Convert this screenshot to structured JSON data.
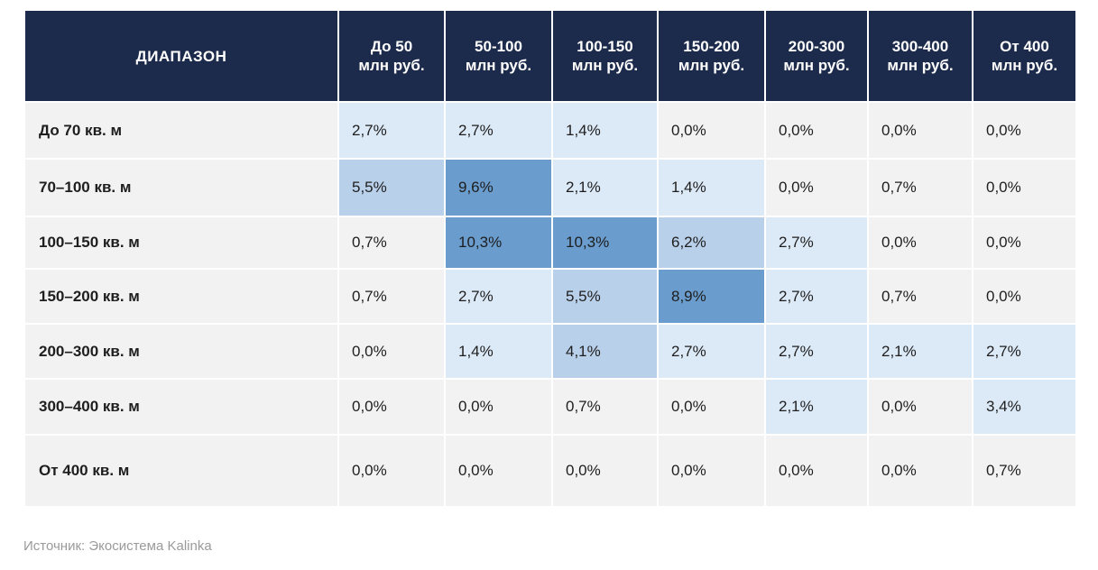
{
  "chart_data": {
    "type": "heatmap",
    "corner_label": "ДИАПАЗОН",
    "columns": [
      [
        "До 50",
        "млн руб."
      ],
      [
        "50-100",
        "млн руб."
      ],
      [
        "100-150",
        "млн руб."
      ],
      [
        "150-200",
        "млн руб."
      ],
      [
        "200-300",
        "млн руб."
      ],
      [
        "300-400",
        "млн руб."
      ],
      [
        "От 400",
        "млн руб."
      ]
    ],
    "rows": [
      "До 70 кв. м",
      "70–100 кв. м",
      "100–150 кв. м",
      "150–200 кв. м",
      "200–300 кв. м",
      "300–400 кв. м",
      "От 400 кв. м"
    ],
    "values": [
      [
        2.7,
        2.7,
        1.4,
        0.0,
        0.0,
        0.0,
        0.0
      ],
      [
        5.5,
        9.6,
        2.1,
        1.4,
        0.0,
        0.7,
        0.0
      ],
      [
        0.7,
        10.3,
        10.3,
        6.2,
        2.7,
        0.0,
        0.0
      ],
      [
        0.7,
        2.7,
        5.5,
        8.9,
        2.7,
        0.7,
        0.0
      ],
      [
        0.0,
        1.4,
        4.1,
        2.7,
        2.7,
        2.1,
        2.7
      ],
      [
        0.0,
        0.0,
        0.7,
        0.0,
        2.1,
        0.0,
        3.4
      ],
      [
        0.0,
        0.0,
        0.0,
        0.0,
        0.0,
        0.0,
        0.7
      ]
    ],
    "cell_labels": [
      [
        "2,7%",
        "2,7%",
        "1,4%",
        "0,0%",
        "0,0%",
        "0,0%",
        "0,0%"
      ],
      [
        "5,5%",
        "9,6%",
        "2,1%",
        "1,4%",
        "0,0%",
        "0,7%",
        "0,0%"
      ],
      [
        "0,7%",
        "10,3%",
        "10,3%",
        "6,2%",
        "2,7%",
        "0,0%",
        "0,0%"
      ],
      [
        "0,7%",
        "2,7%",
        "5,5%",
        "8,9%",
        "2,7%",
        "0,7%",
        "0,0%"
      ],
      [
        "0,0%",
        "1,4%",
        "4,1%",
        "2,7%",
        "2,7%",
        "2,1%",
        "2,7%"
      ],
      [
        "0,0%",
        "0,0%",
        "0,7%",
        "0,0%",
        "2,1%",
        "0,0%",
        "3,4%"
      ],
      [
        "0,0%",
        "0,0%",
        "0,0%",
        "0,0%",
        "0,0%",
        "0,0%",
        "0,7%"
      ]
    ],
    "color_scale": {
      "neutral": "#f2f2f2",
      "light": "#dce9f7",
      "medium": "#b9d0ea",
      "dark": "#6a9ccd"
    }
  },
  "source": "Источник: Экосистема Kalinka"
}
